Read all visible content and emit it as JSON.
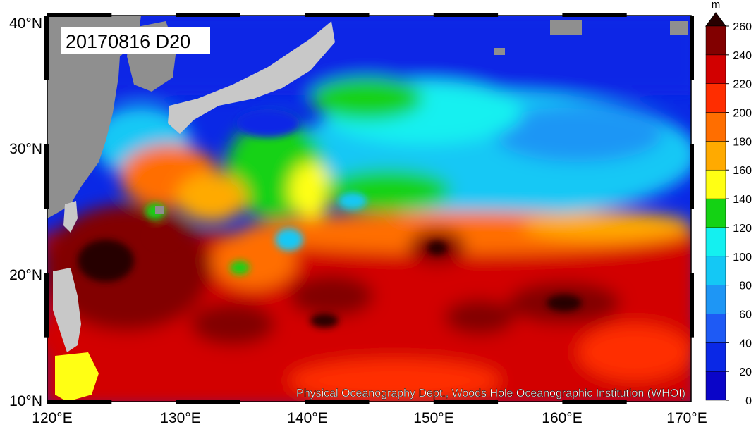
{
  "map": {
    "date_label": "20170816 D20",
    "credit": "Physical Oceanography Dept., Woods Hole Oceanographic Institution (WHOI)",
    "lat_labels": [
      "40°N",
      "30°N",
      "20°N",
      "10°N"
    ],
    "lon_labels": [
      "120°E",
      "130°E",
      "140°E",
      "150°E",
      "160°E",
      "170°E"
    ],
    "lat_range": [
      10,
      40
    ],
    "lon_range": [
      120,
      170
    ],
    "land_color": "#8f8f8f",
    "land_light_color": "#c8c8c8"
  },
  "colorbar": {
    "unit": "m",
    "ticks": [
      "0",
      "20",
      "40",
      "60",
      "80",
      "100",
      "120",
      "140",
      "160",
      "180",
      "200",
      "220",
      "240",
      "260"
    ],
    "colors": [
      "#0a05c8",
      "#0a28e6",
      "#1e5af5",
      "#1e96f5",
      "#14c8f5",
      "#14f0f0",
      "#14d214",
      "#ffff14",
      "#ffaa00",
      "#ff6e00",
      "#ff2d00",
      "#d20000",
      "#820000"
    ],
    "top_color": "#280000"
  }
}
